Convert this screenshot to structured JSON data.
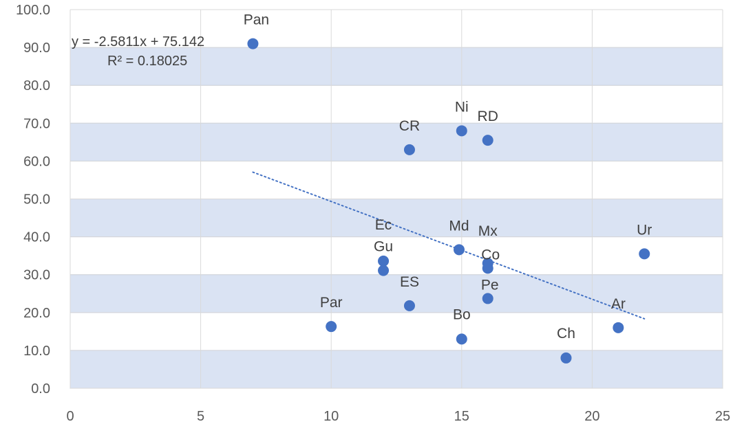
{
  "chart_data": {
    "type": "scatter",
    "xlim": [
      0,
      25
    ],
    "ylim": [
      0,
      100
    ],
    "x_ticks": [
      0,
      5,
      10,
      15,
      20,
      25
    ],
    "y_ticks": [
      0,
      10,
      20,
      30,
      40,
      50,
      60,
      70,
      80,
      90,
      100
    ],
    "x_tick_labels": [
      "0",
      "5",
      "10",
      "15",
      "20",
      "25"
    ],
    "y_tick_labels": [
      "0.0",
      "10.0",
      "20.0",
      "30.0",
      "40.0",
      "50.0",
      "60.0",
      "70.0",
      "80.0",
      "90.0",
      "100.0"
    ],
    "band_ranges": [
      [
        0,
        10
      ],
      [
        20,
        30
      ],
      [
        40,
        50
      ],
      [
        60,
        70
      ],
      [
        80,
        90
      ]
    ],
    "grid": true,
    "points": [
      {
        "label": "Pan",
        "x": 7,
        "y": 91
      },
      {
        "label": "CR",
        "x": 13,
        "y": 63
      },
      {
        "label": "Ni",
        "x": 15,
        "y": 68
      },
      {
        "label": "RD",
        "x": 16,
        "y": 65.5
      },
      {
        "label": "Md",
        "x": 14.9,
        "y": 36.6
      },
      {
        "label": "Mx",
        "x": 16,
        "y": 33
      },
      {
        "label": "Co",
        "x": 16,
        "y": 31.7
      },
      {
        "label": "Ec",
        "x": 12,
        "y": 33.6
      },
      {
        "label": "Gu",
        "x": 12,
        "y": 31.1
      },
      {
        "label": "ES",
        "x": 13,
        "y": 21.8
      },
      {
        "label": "Pe",
        "x": 16,
        "y": 23.7
      },
      {
        "label": "Par",
        "x": 10,
        "y": 16.3
      },
      {
        "label": "Bo",
        "x": 15,
        "y": 13
      },
      {
        "label": "Ch",
        "x": 19,
        "y": 8
      },
      {
        "label": "Ar",
        "x": 21,
        "y": 16
      },
      {
        "label": "Ur",
        "x": 22,
        "y": 35.5
      }
    ],
    "trendline": {
      "slope": -2.5811,
      "intercept": 75.142,
      "x_range": [
        7,
        22
      ],
      "equation": "y = -2.5811x + 75.142",
      "r_squared": "R² = 0.18025"
    },
    "colors": {
      "point": "#4472c4",
      "trendline": "#4472c4",
      "band": "#dae3f3",
      "band_border": "#b4c6e7",
      "grid": "#d9d9d9"
    }
  }
}
